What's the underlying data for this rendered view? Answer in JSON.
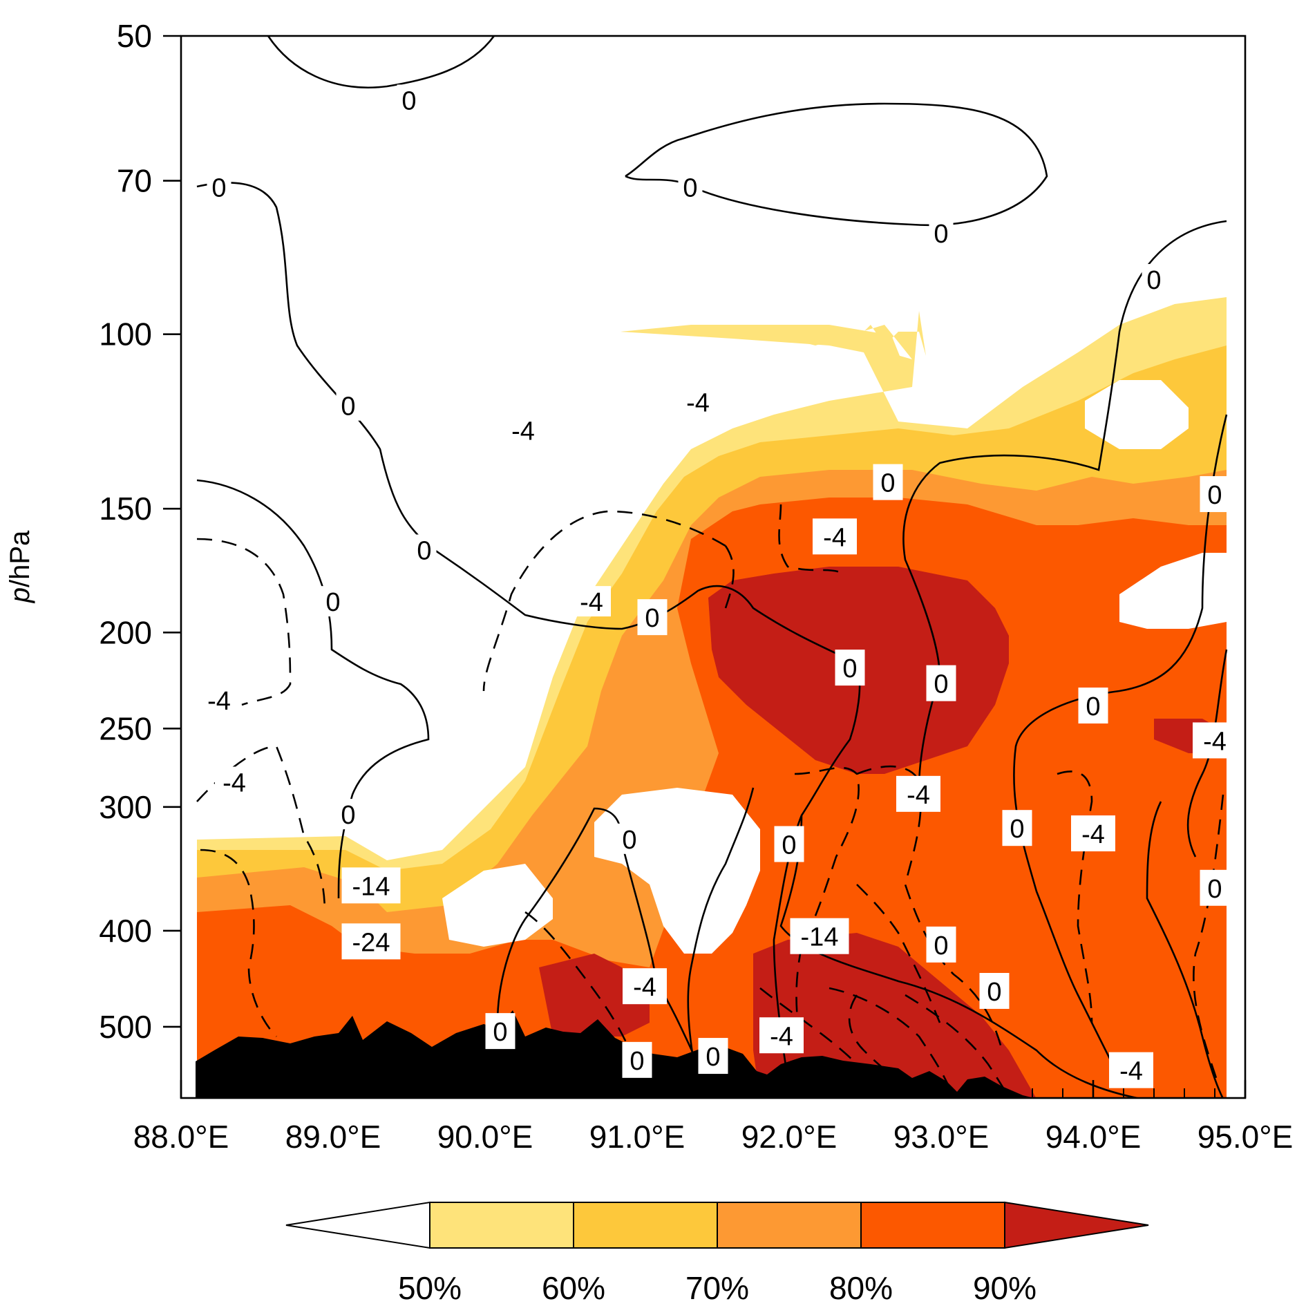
{
  "chart_data": {
    "type": "heatmap",
    "description_units": {
      "x": "degrees east longitude",
      "y": "pressure (hPa), log scale"
    },
    "xlabel": "",
    "ylabel_italic": "p",
    "ylabel_rest": "/hPa",
    "x_ticks": [
      {
        "value": 88.0,
        "label": "88.0°E"
      },
      {
        "value": 89.0,
        "label": "89.0°E"
      },
      {
        "value": 90.0,
        "label": "90.0°E"
      },
      {
        "value": 91.0,
        "label": "91.0°E"
      },
      {
        "value": 92.0,
        "label": "92.0°E"
      },
      {
        "value": 93.0,
        "label": "93.0°E"
      },
      {
        "value": 94.0,
        "label": "94.0°E"
      },
      {
        "value": 95.0,
        "label": "95.0°E"
      }
    ],
    "y_ticks": [
      {
        "value": 50,
        "label": "50"
      },
      {
        "value": 70,
        "label": "70"
      },
      {
        "value": 100,
        "label": "100"
      },
      {
        "value": 150,
        "label": "150"
      },
      {
        "value": 200,
        "label": "200"
      },
      {
        "value": 250,
        "label": "250"
      },
      {
        "value": 300,
        "label": "300"
      },
      {
        "value": 400,
        "label": "400"
      },
      {
        "value": 500,
        "label": "500"
      }
    ],
    "xlim": [
      88.0,
      95.0
    ],
    "ylim": [
      50,
      590
    ],
    "y_scale": "log",
    "fill_levels": [
      {
        "label": "50%",
        "color": "#fee37a"
      },
      {
        "label": "60%",
        "color": "#fdc83b"
      },
      {
        "label": "70%",
        "color": "#fd9933"
      },
      {
        "label": "80%",
        "color": "#fc5800"
      },
      {
        "label": "90%",
        "color": "#c41e16"
      }
    ],
    "colorbar": {
      "placement": "bottom",
      "labels": [
        "50%",
        "60%",
        "70%",
        "80%",
        "90%"
      ]
    },
    "contour_labels": [
      {
        "x": 89.5,
        "y": 58,
        "text": "0",
        "box": false
      },
      {
        "x": 91.35,
        "y": 71,
        "text": "0",
        "box": false
      },
      {
        "x": 93.0,
        "y": 79,
        "text": "0",
        "box": false
      },
      {
        "x": 88.25,
        "y": 71,
        "text": "0",
        "box": false
      },
      {
        "x": 94.4,
        "y": 88,
        "text": "0",
        "box": false
      },
      {
        "x": 89.1,
        "y": 118,
        "text": "0",
        "box": false
      },
      {
        "x": 89.6,
        "y": 165,
        "text": "0",
        "box": false
      },
      {
        "x": 89.0,
        "y": 186,
        "text": "0",
        "box": false
      },
      {
        "x": 88.25,
        "y": 234,
        "text": "-4",
        "box": false
      },
      {
        "x": 88.35,
        "y": 283,
        "text": "-4",
        "box": false
      },
      {
        "x": 89.1,
        "y": 305,
        "text": "0",
        "box": false
      },
      {
        "x": 89.25,
        "y": 360,
        "text": "-14",
        "box": true
      },
      {
        "x": 89.25,
        "y": 410,
        "text": "-24",
        "box": true
      },
      {
        "x": 90.25,
        "y": 125,
        "text": "-4",
        "box": false
      },
      {
        "x": 91.4,
        "y": 117,
        "text": "-4",
        "box": false
      },
      {
        "x": 90.7,
        "y": 186,
        "text": "-4",
        "box": false
      },
      {
        "x": 91.1,
        "y": 193,
        "text": "0",
        "box": true
      },
      {
        "x": 92.3,
        "y": 160,
        "text": "-4",
        "box": true
      },
      {
        "x": 92.4,
        "y": 217,
        "text": "0",
        "box": true
      },
      {
        "x": 92.65,
        "y": 141,
        "text": "0",
        "box": true
      },
      {
        "x": 93.0,
        "y": 225,
        "text": "0",
        "box": true
      },
      {
        "x": 94.0,
        "y": 237,
        "text": "0",
        "box": true
      },
      {
        "x": 94.8,
        "y": 145,
        "text": "0",
        "box": true
      },
      {
        "x": 94.8,
        "y": 257,
        "text": "-4",
        "box": true
      },
      {
        "x": 92.85,
        "y": 291,
        "text": "-4",
        "box": true
      },
      {
        "x": 93.5,
        "y": 315,
        "text": "0",
        "box": true
      },
      {
        "x": 94.0,
        "y": 319,
        "text": "-4",
        "box": true
      },
      {
        "x": 94.8,
        "y": 362,
        "text": "0",
        "box": true
      },
      {
        "x": 92.0,
        "y": 327,
        "text": "0",
        "box": true
      },
      {
        "x": 90.95,
        "y": 323,
        "text": "0",
        "box": false
      },
      {
        "x": 92.2,
        "y": 405,
        "text": "-14",
        "box": true
      },
      {
        "x": 93.0,
        "y": 413,
        "text": "0",
        "box": true
      },
      {
        "x": 93.35,
        "y": 460,
        "text": "0",
        "box": true
      },
      {
        "x": 91.05,
        "y": 455,
        "text": "-4",
        "box": true
      },
      {
        "x": 90.1,
        "y": 505,
        "text": "0",
        "box": true
      },
      {
        "x": 91.0,
        "y": 540,
        "text": "0",
        "box": true
      },
      {
        "x": 91.5,
        "y": 535,
        "text": "0",
        "box": true
      },
      {
        "x": 91.95,
        "y": 510,
        "text": "-4",
        "box": true
      },
      {
        "x": 94.25,
        "y": 553,
        "text": "-4",
        "box": true
      }
    ],
    "terrain": {
      "color": "#000000",
      "label": ""
    }
  }
}
